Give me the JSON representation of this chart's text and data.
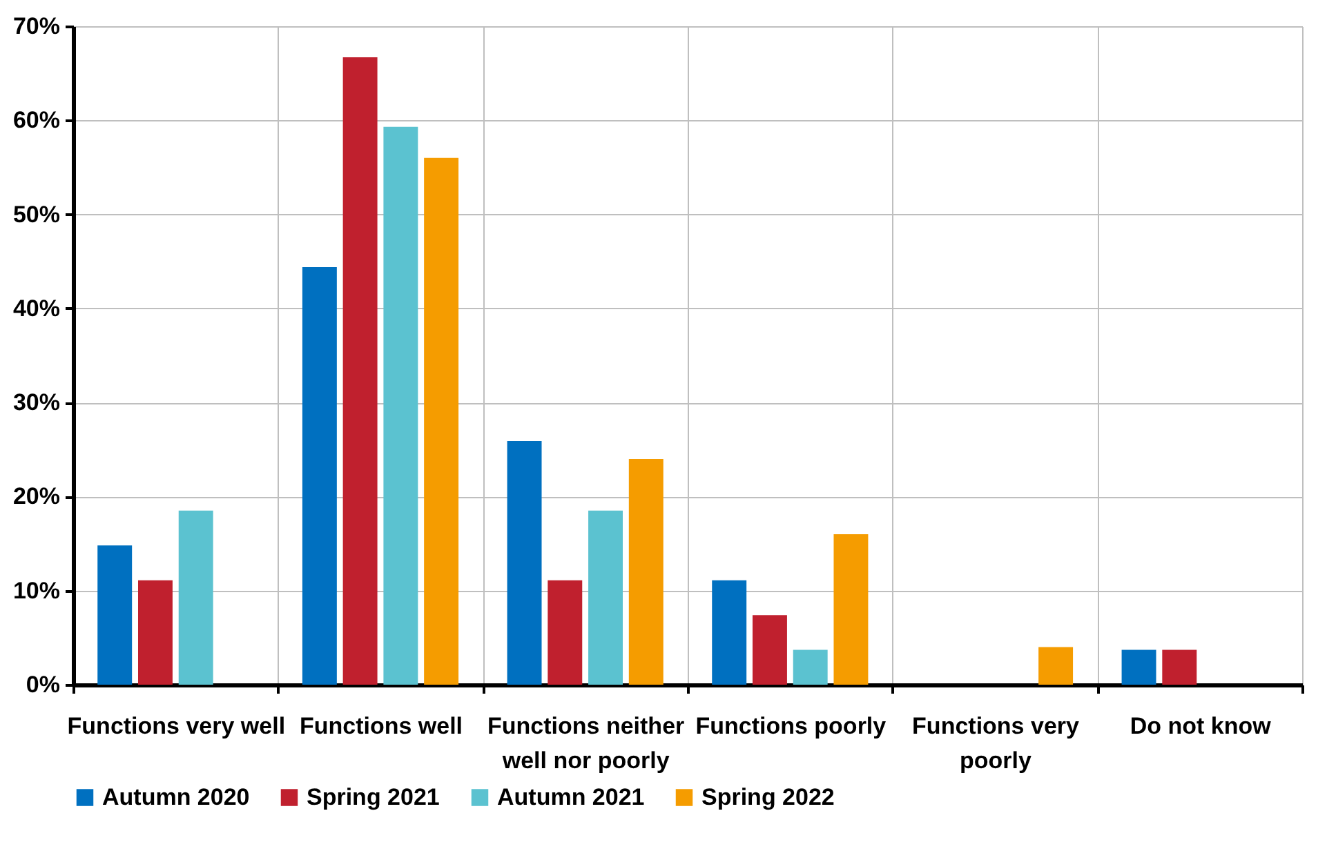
{
  "chart_data": {
    "type": "bar",
    "categories": [
      "Functions very well",
      "Functions well",
      "Functions neither well nor poorly",
      "Functions poorly",
      "Functions very poorly",
      "Do not know"
    ],
    "series": [
      {
        "name": "Autumn 2020",
        "color": "#0070c0",
        "values": [
          14.8,
          44.4,
          25.9,
          11.1,
          0,
          3.7
        ]
      },
      {
        "name": "Spring 2021",
        "color": "#c0202e",
        "values": [
          11.1,
          66.7,
          11.1,
          7.4,
          0,
          3.7
        ]
      },
      {
        "name": "Autumn 2021",
        "color": "#5bc2d0",
        "values": [
          18.5,
          59.3,
          18.5,
          3.7,
          0,
          0
        ]
      },
      {
        "name": "Spring 2022",
        "color": "#f59c00",
        "values": [
          0,
          56,
          24,
          16,
          4,
          0
        ]
      }
    ],
    "ylim": [
      0,
      70
    ],
    "yticks": [
      {
        "value": 0,
        "label": "0%"
      },
      {
        "value": 10,
        "label": "10%"
      },
      {
        "value": 20,
        "label": "20%"
      },
      {
        "value": 30,
        "label": "30%"
      },
      {
        "value": 40,
        "label": "40%"
      },
      {
        "value": 50,
        "label": "50%"
      },
      {
        "value": 60,
        "label": "60%"
      },
      {
        "value": 70,
        "label": "70%"
      }
    ],
    "grid": true,
    "legend": "bottom"
  }
}
